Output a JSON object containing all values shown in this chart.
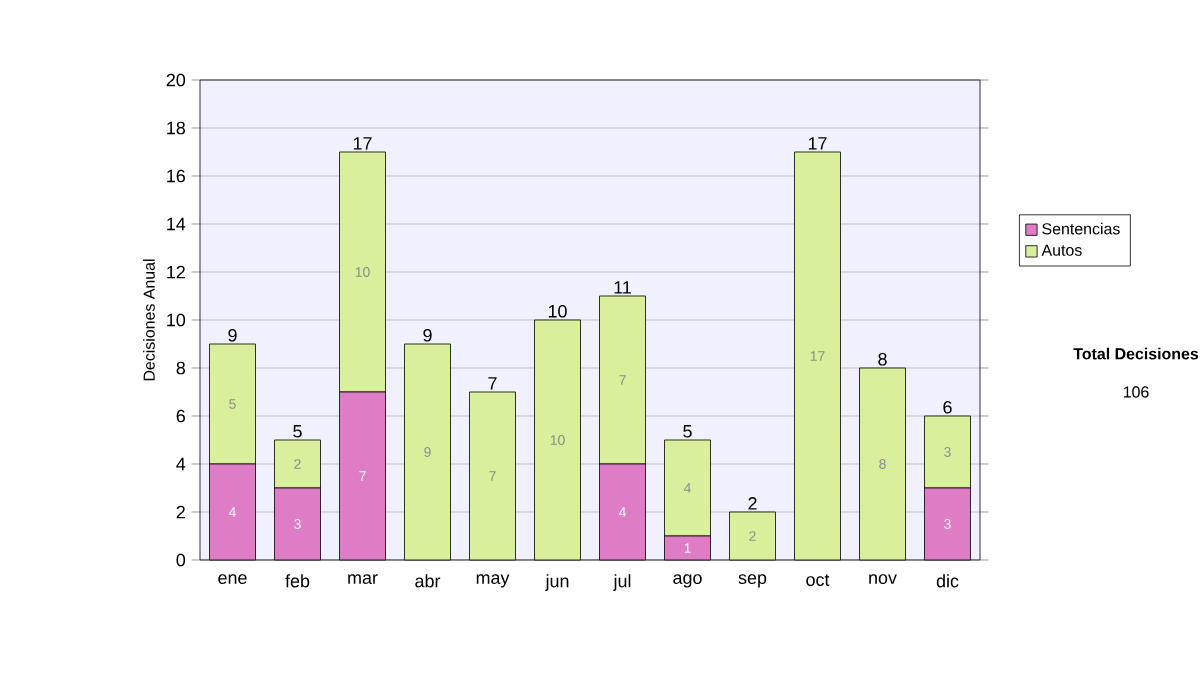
{
  "chart_data": {
    "type": "bar",
    "stacked": true,
    "ylabel": "Decisiones Anual",
    "categories": [
      "ene",
      "feb",
      "mar",
      "abr",
      "may",
      "jun",
      "jul",
      "ago",
      "sep",
      "oct",
      "nov",
      "dic"
    ],
    "series": [
      {
        "name": "Sentencias",
        "color": "#de7cc6",
        "values": [
          4,
          3,
          7,
          0,
          0,
          0,
          4,
          1,
          0,
          0,
          0,
          3
        ],
        "value_labels": [
          "4",
          "3",
          "7",
          null,
          null,
          null,
          "4",
          "1",
          null,
          null,
          null,
          "3"
        ]
      },
      {
        "name": "Autos",
        "color": "#d8ef9c",
        "values": [
          5,
          2,
          10,
          9,
          7,
          10,
          7,
          4,
          2,
          17,
          8,
          3
        ],
        "value_labels": [
          "5",
          "2",
          "10",
          "9",
          "7",
          "10",
          "7",
          "4",
          "2",
          "17",
          "8",
          "3"
        ]
      }
    ],
    "totals": [
      "9",
      "5",
      "17",
      "9",
      "7",
      "10",
      "11",
      "5",
      "2",
      "17",
      "8",
      "6"
    ],
    "ylim": [
      0,
      20
    ],
    "yticks": [
      0,
      2,
      4,
      6,
      8,
      10,
      12,
      14,
      16,
      18,
      20
    ],
    "grid": "y",
    "legend": "right",
    "annotations": [
      "Total Decisiones",
      "106"
    ]
  }
}
